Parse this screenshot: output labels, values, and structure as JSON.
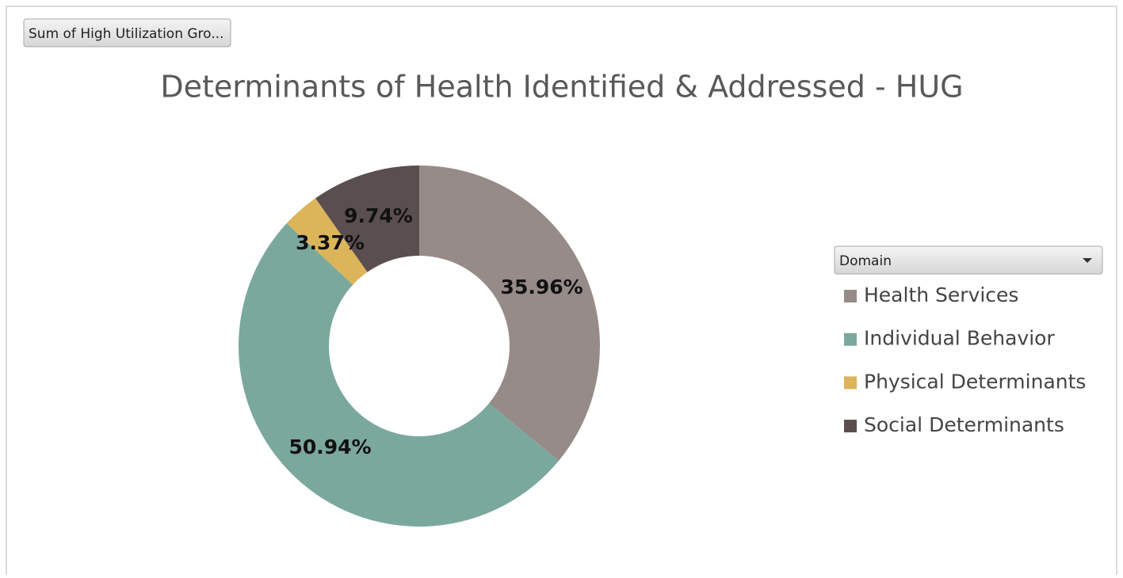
{
  "chart_data": {
    "type": "donut",
    "field_button": "Sum of High Utilization Gro...",
    "title": "Determinants of Health Identified & Addressed - HUG",
    "legend_title": "Domain",
    "categories": [
      "Health Services",
      "Individual Behavior",
      "Physical Determinants",
      "Social Determinants"
    ],
    "values": [
      35.96,
      50.94,
      3.37,
      9.74
    ],
    "value_labels": [
      "35.96%",
      "50.94%",
      "3.37%",
      "9.74%"
    ],
    "colors": [
      "#968b88",
      "#7ba89c",
      "#dcb45a",
      "#5a4f4e"
    ],
    "legend_position": "right"
  }
}
